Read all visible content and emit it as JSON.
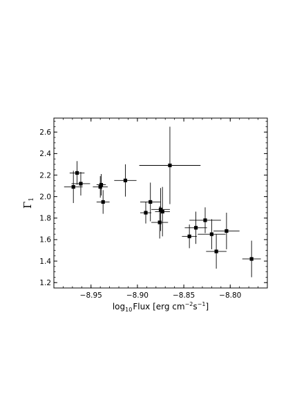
{
  "chart_data": {
    "type": "scatter",
    "title": "",
    "xlabel": {
      "main": "log",
      "sub": "10",
      "text": "Flux [erg cm",
      "exp1": "−2",
      "mid": "s",
      "exp2": "−1",
      "end": "]"
    },
    "ylabel": {
      "main": "Γ",
      "sub": "1"
    },
    "xlim": [
      -8.99,
      -8.76
    ],
    "ylim": [
      1.15,
      2.73
    ],
    "xticks": [
      -8.95,
      -8.9,
      -8.85,
      -8.8
    ],
    "xtick_labels": [
      "−8.95",
      "−8.90",
      "−8.85",
      "−8.80"
    ],
    "yticks": [
      1.2,
      1.4,
      1.6,
      1.8,
      2.0,
      2.2,
      2.4,
      2.6
    ],
    "ytick_labels": [
      "1.2",
      "1.4",
      "1.6",
      "1.8",
      "2.0",
      "2.2",
      "2.4",
      "2.6"
    ],
    "grid": false,
    "legend": "none",
    "marker_color": "#000000",
    "points": [
      {
        "x": -8.969,
        "y": 2.09,
        "xerr": 0.01,
        "yerr": 0.15
      },
      {
        "x": -8.965,
        "y": 2.22,
        "xerr": 0.008,
        "yerr": 0.11
      },
      {
        "x": -8.961,
        "y": 2.12,
        "xerr": 0.01,
        "yerr": 0.11
      },
      {
        "x": -8.94,
        "y": 2.09,
        "xerr": 0.008,
        "yerr": 0.1
      },
      {
        "x": -8.939,
        "y": 2.11,
        "xerr": 0.005,
        "yerr": 0.1
      },
      {
        "x": -8.937,
        "y": 1.95,
        "xerr": 0.007,
        "yerr": 0.11
      },
      {
        "x": -8.913,
        "y": 2.15,
        "xerr": 0.012,
        "yerr": 0.15
      },
      {
        "x": -8.891,
        "y": 1.85,
        "xerr": 0.006,
        "yerr": 0.1
      },
      {
        "x": -8.886,
        "y": 1.95,
        "xerr": 0.011,
        "yerr": 0.18
      },
      {
        "x": -8.876,
        "y": 1.76,
        "xerr": 0.009,
        "yerr": 0.15
      },
      {
        "x": -8.875,
        "y": 1.88,
        "xerr": 0.01,
        "yerr": 0.2
      },
      {
        "x": -8.873,
        "y": 1.86,
        "xerr": 0.008,
        "yerr": 0.23
      },
      {
        "x": -8.865,
        "y": 2.29,
        "xerr": 0.033,
        "yerr": 0.36
      },
      {
        "x": -8.844,
        "y": 1.63,
        "xerr": 0.008,
        "yerr": 0.11
      },
      {
        "x": -8.837,
        "y": 1.71,
        "xerr": 0.012,
        "yerr": 0.15
      },
      {
        "x": -8.827,
        "y": 1.78,
        "xerr": 0.017,
        "yerr": 0.12
      },
      {
        "x": -8.82,
        "y": 1.65,
        "xerr": 0.015,
        "yerr": 0.14
      },
      {
        "x": -8.815,
        "y": 1.49,
        "xerr": 0.011,
        "yerr": 0.16
      },
      {
        "x": -8.804,
        "y": 1.68,
        "xerr": 0.014,
        "yerr": 0.17
      },
      {
        "x": -8.777,
        "y": 1.42,
        "xerr": 0.01,
        "yerr": 0.17
      }
    ]
  }
}
